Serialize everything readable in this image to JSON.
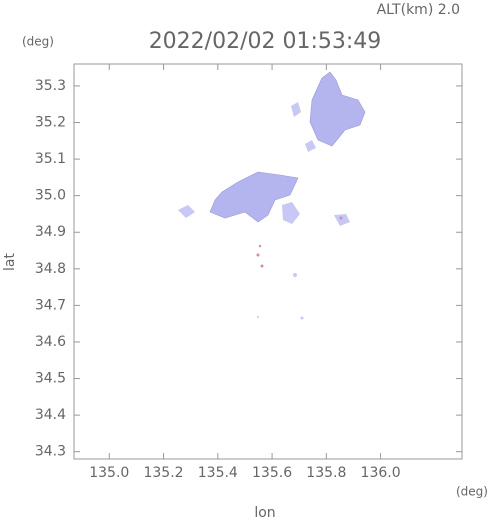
{
  "chart_data": {
    "type": "map",
    "title": "2022/02/02 01:53:49",
    "subtitle": "ALT(km) 2.0",
    "x_label": "lon",
    "y_label": "lat",
    "x_unit": "(deg)",
    "y_unit": "(deg)",
    "xlim": [
      134.87,
      136.3
    ],
    "ylim": [
      34.28,
      35.36
    ],
    "xticks": [
      {
        "value": 135.0,
        "label": "135.0"
      },
      {
        "value": 135.2,
        "label": "135.2"
      },
      {
        "value": 135.4,
        "label": "135.4"
      },
      {
        "value": 135.6,
        "label": "135.6"
      },
      {
        "value": 135.8,
        "label": "135.8"
      },
      {
        "value": 136.0,
        "label": "136.0"
      }
    ],
    "yticks": [
      {
        "value": 34.3,
        "label": "34.3"
      },
      34.4,
      34.5,
      34.6,
      34.7,
      34.8,
      34.9,
      {
        "value": 35.0,
        "label": "35.0"
      },
      35.1,
      35.2,
      35.3
    ]
  }
}
